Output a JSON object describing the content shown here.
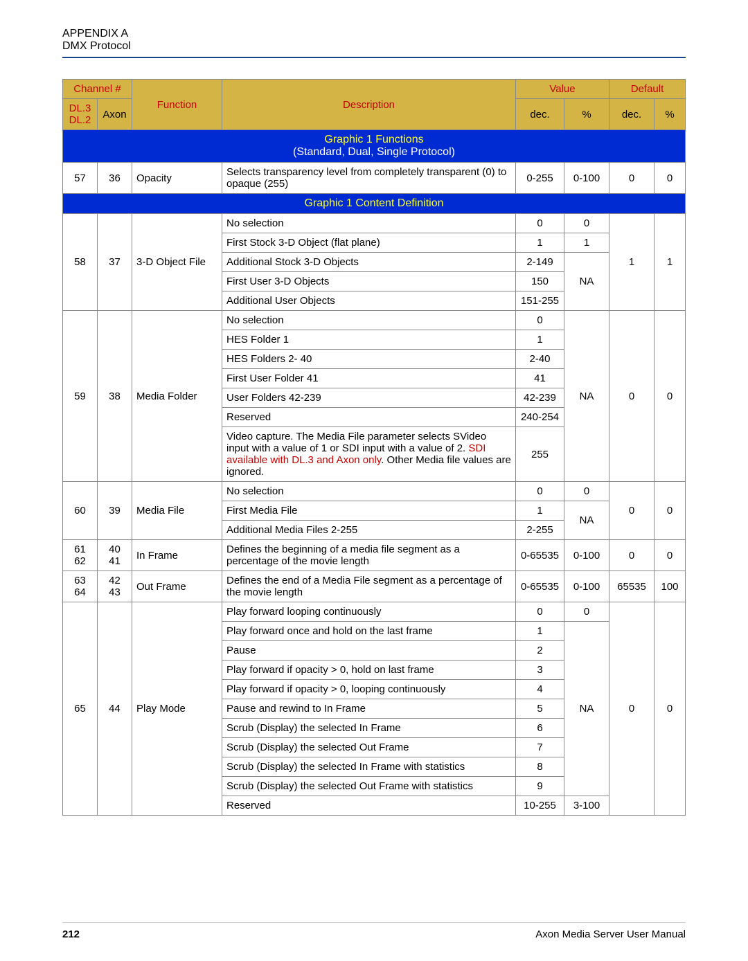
{
  "header": {
    "line1": "APPENDIX A",
    "line2": "DMX Protocol"
  },
  "thead": {
    "channel": "Channel #",
    "dl3": "DL.3",
    "dl2": "DL.2",
    "axon": "Axon",
    "function": "Function",
    "description": "Description",
    "value": "Value",
    "default": "Default",
    "dec": "dec.",
    "pct": "%"
  },
  "section1": {
    "title": "Graphic 1 Functions",
    "subtitle": "(Standard, Dual, Single Protocol)"
  },
  "row_opacity": {
    "ch_dl": "57",
    "ch_axon": "36",
    "fn": "Opacity",
    "desc": "Selects transparency level from completely transparent (0) to opaque (255)",
    "vdec": "0-255",
    "vpct": "0-100",
    "ddec": "0",
    "dpct": "0"
  },
  "section2": {
    "title": "Graphic 1 Content Definition"
  },
  "row_3d": {
    "ch_dl": "58",
    "ch_axon": "37",
    "fn": "3-D Object File",
    "d0": "No selection",
    "v0": "0",
    "p0": "0",
    "d1": "First Stock 3-D Object (flat plane)",
    "v1": "1",
    "p1": "1",
    "d2": "Additional Stock 3-D Objects",
    "v2": "2-149",
    "d3": "First User 3-D Objects",
    "v3": "150",
    "p3": "NA",
    "d4": "Additional User Objects",
    "v4": "151-255",
    "ddec": "1",
    "dpct": "1"
  },
  "row_mf": {
    "ch_dl": "59",
    "ch_axon": "38",
    "fn": "Media Folder",
    "d0": "No selection",
    "v0": "0",
    "d1": "HES Folder 1",
    "v1": "1",
    "d2": "HES Folders 2- 40",
    "v2": "2-40",
    "d3": "First User Folder 41",
    "v3": "41",
    "d4": "User Folders 42-239",
    "v4": "42-239",
    "d5": "Reserved",
    "v5": "240-254",
    "d6a": "Video capture. The Media File parameter selects SVideo input with a value of 1 or SDI input with a value of 2. ",
    "d6r": "SDI available with DL.3 and Axon only",
    "d6b": ". Other Media file values are ignored.",
    "v6": "255",
    "vpct": "NA",
    "ddec": "0",
    "dpct": "0"
  },
  "row_mfile": {
    "ch_dl": "60",
    "ch_axon": "39",
    "fn": "Media File",
    "d0": "No selection",
    "v0": "0",
    "p0": "0",
    "d1": "First Media File",
    "v1": "1",
    "d2": "Additional Media Files 2-255",
    "v2": "2-255",
    "p1": "NA",
    "ddec": "0",
    "dpct": "0"
  },
  "row_in": {
    "ch_dl": "61\n62",
    "ch_axon": "40\n41",
    "fn": "In Frame",
    "desc": "Defines the beginning of a media file segment as a percentage of the movie length",
    "vdec": "0-65535",
    "vpct": "0-100",
    "ddec": "0",
    "dpct": "0"
  },
  "row_out": {
    "ch_dl": "63\n64",
    "ch_axon": "42\n43",
    "fn": "Out Frame",
    "desc": "Defines the end of a Media File segment as a percentage of the movie length",
    "vdec": "0-65535",
    "vpct": "0-100",
    "ddec": "65535",
    "dpct": "100"
  },
  "row_pm": {
    "ch_dl": "65",
    "ch_axon": "44",
    "fn": "Play Mode",
    "d0": "Play forward looping continuously",
    "v0": "0",
    "p0": "0",
    "d1": "Play forward once and hold on the last frame",
    "v1": "1",
    "d2": "Pause",
    "v2": "2",
    "d3": "Play forward if opacity > 0, hold on last frame",
    "v3": "3",
    "d4": "Play forward if opacity > 0, looping continuously",
    "v4": "4",
    "d5": "Pause and rewind to In Frame",
    "v5": "5",
    "d6": "Scrub (Display) the selected In Frame",
    "v6": "6",
    "d7": "Scrub (Display) the selected Out Frame",
    "v7": "7",
    "d8": "Scrub (Display) the selected In Frame with statistics",
    "v8": "8",
    "d9": "Scrub (Display) the selected Out Frame with statistics",
    "v9": "9",
    "d10": "Reserved",
    "v10": "10-255",
    "pna": "NA",
    "p10": "3-100",
    "ddec": "0",
    "dpct": "0"
  },
  "footer": {
    "page": "212",
    "manual": "Axon Media Server User Manual"
  }
}
